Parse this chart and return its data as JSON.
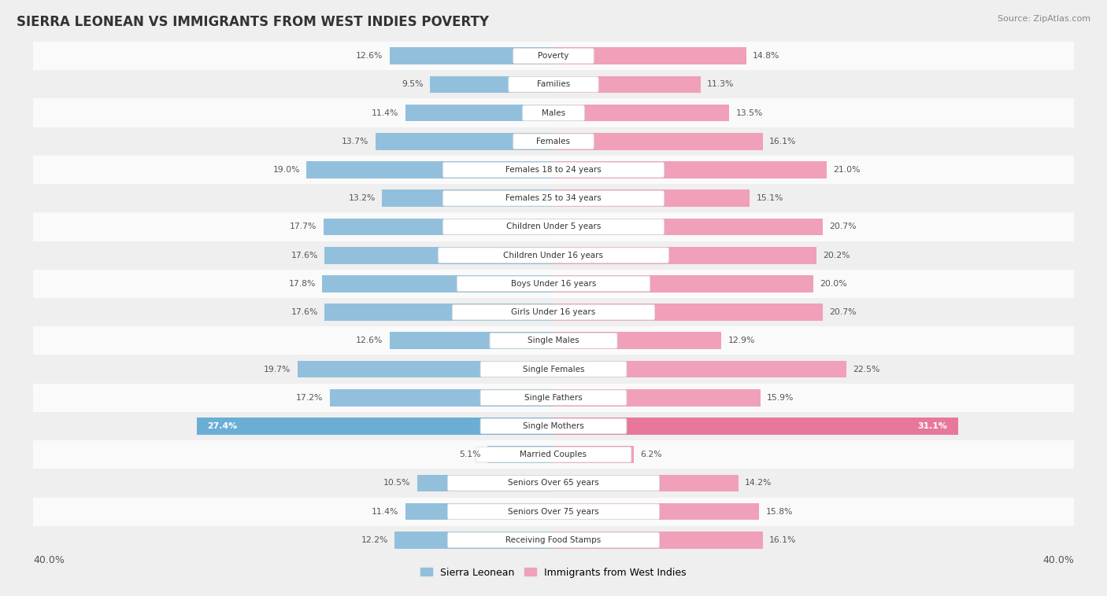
{
  "title": "SIERRA LEONEAN VS IMMIGRANTS FROM WEST INDIES POVERTY",
  "source": "Source: ZipAtlas.com",
  "categories": [
    "Receiving Food Stamps",
    "Seniors Over 75 years",
    "Seniors Over 65 years",
    "Married Couples",
    "Single Mothers",
    "Single Fathers",
    "Single Females",
    "Single Males",
    "Girls Under 16 years",
    "Boys Under 16 years",
    "Children Under 16 years",
    "Children Under 5 years",
    "Females 25 to 34 years",
    "Females 18 to 24 years",
    "Females",
    "Males",
    "Families",
    "Poverty"
  ],
  "sierra_leonean": [
    12.2,
    11.4,
    10.5,
    5.1,
    27.4,
    17.2,
    19.7,
    12.6,
    17.6,
    17.8,
    17.6,
    17.7,
    13.2,
    19.0,
    13.7,
    11.4,
    9.5,
    12.6
  ],
  "west_indies": [
    16.1,
    15.8,
    14.2,
    6.2,
    31.1,
    15.9,
    22.5,
    12.9,
    20.7,
    20.0,
    20.2,
    20.7,
    15.1,
    21.0,
    16.1,
    13.5,
    11.3,
    14.8
  ],
  "blue_color": "#92C0DC",
  "pink_color": "#F0A0B8",
  "highlight_blue": "#6AAED6",
  "highlight_pink": "#E8789A",
  "bg_color": "#EFEFEF",
  "row_light": "#FAFAFA",
  "row_dark": "#EFEFEF",
  "axis_max": 40.0,
  "legend_label_blue": "Sierra Leonean",
  "legend_label_pink": "Immigrants from West Indies"
}
